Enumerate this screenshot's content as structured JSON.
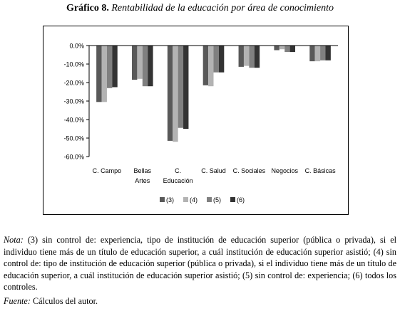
{
  "figure": {
    "label": "Gráfico 8.",
    "title": "Rentabilidad de la educación por área de conocimiento"
  },
  "chart_data": {
    "type": "bar",
    "categories": [
      [
        "C. Campo"
      ],
      [
        "Bellas",
        "Artes"
      ],
      [
        "C.",
        "Educación"
      ],
      [
        "C. Salud"
      ],
      [
        "C. Sociales"
      ],
      [
        "Negocios"
      ],
      [
        "C. Básicas"
      ]
    ],
    "y_ticks": [
      "0.0%",
      "-10.0%",
      "-20.0%",
      "-30.0%",
      "-40.0%",
      "-50.0%",
      "-60.0%"
    ],
    "ylim": [
      -60,
      0
    ],
    "grid": false,
    "legend_position": "bottom",
    "series": [
      {
        "name": "(3)",
        "color": "#595959",
        "values": [
          -30.5,
          -18.5,
          -51.5,
          -21.5,
          -11.5,
          -2.5,
          -8.5
        ]
      },
      {
        "name": "(4)",
        "color": "#b3b3b3",
        "values": [
          -30.5,
          -18,
          -52,
          -22,
          -11,
          -2,
          -8.5
        ]
      },
      {
        "name": "(5)",
        "color": "#808080",
        "values": [
          -23,
          -22,
          -44.5,
          -14.5,
          -12,
          -3.5,
          -8
        ]
      },
      {
        "name": "(6)",
        "color": "#333333",
        "values": [
          -22.5,
          -22,
          -45,
          -14.5,
          -12,
          -3.5,
          -8
        ]
      }
    ]
  },
  "note": {
    "label": "Nota:",
    "text": "(3) sin control de: experiencia, tipo de institución de educación superior (pública o privada), si el individuo tiene más de un título de educación superior, a cuál institución de educación superior asistió; (4) sin control de: tipo de institución de educación superior (pública o privada), si el individuo tiene más de un título de educación superior, a cuál institución de educación superior asistió; (5) sin control de: experiencia; (6) todos los controles."
  },
  "source": {
    "label": "Fuente:",
    "text": "Cálculos del autor."
  }
}
